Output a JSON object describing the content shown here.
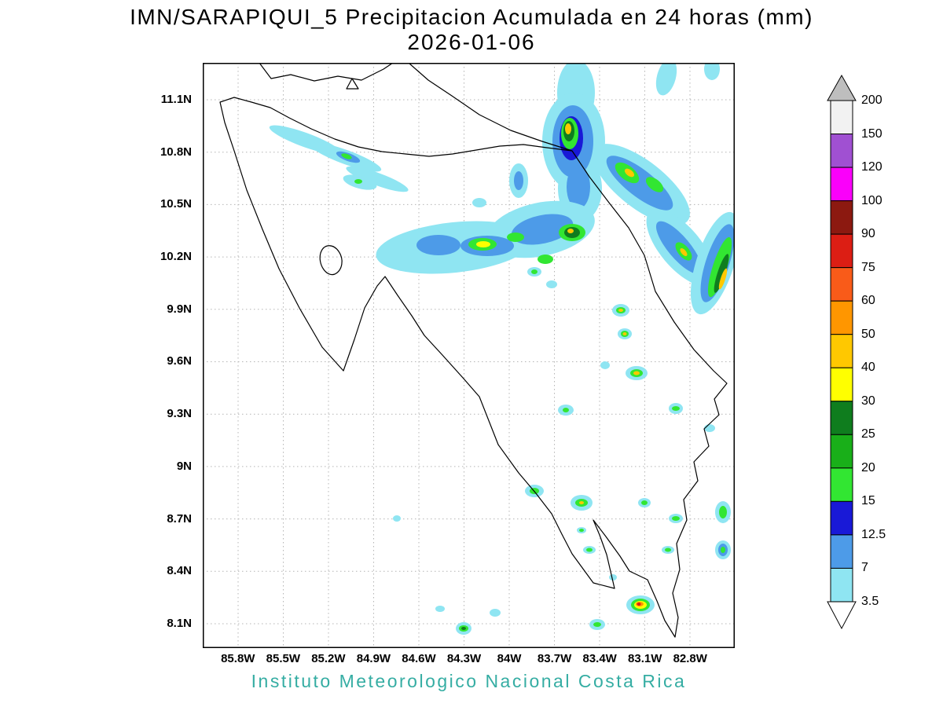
{
  "title": {
    "line1": "IMN/SARAPIQUI_5 Precipitacion Acumulada en 24 horas (mm)",
    "line2": "2026-01-06"
  },
  "footer": {
    "text": "Instituto Meteorologico Nacional Costa Rica",
    "color": "#35ada3"
  },
  "map": {
    "lat_ticks": [
      "11.1N",
      "10.8N",
      "10.5N",
      "10.2N",
      "9.9N",
      "9.6N",
      "9.3N",
      "9N",
      "8.7N",
      "8.4N",
      "8.1N"
    ],
    "lon_ticks": [
      "85.8W",
      "85.5W",
      "85.2W",
      "84.9W",
      "84.6W",
      "84.3W",
      "84W",
      "83.7W",
      "83.4W",
      "83.1W",
      "82.8W"
    ],
    "region": "Costa Rica"
  },
  "colorbar": {
    "units": "mm",
    "labels_top_to_bottom": [
      "200",
      "150",
      "120",
      "100",
      "90",
      "75",
      "60",
      "50",
      "40",
      "30",
      "25",
      "20",
      "15",
      "12.5",
      "7",
      "3.5"
    ],
    "segments_top_to_bottom": [
      {
        "range": ">200",
        "color": "#bebebe",
        "shape": "arrow-up",
        "css_var": "--c-gt200"
      },
      {
        "range": "150-200",
        "color": "#f2f2f2",
        "css_var": "--c-150"
      },
      {
        "range": "120-150",
        "color": "#a050d2",
        "css_var": "--c-120"
      },
      {
        "range": "100-120",
        "color": "#fa00fa",
        "css_var": "--c-100"
      },
      {
        "range": "90-100",
        "color": "#8c1910",
        "css_var": "--c-90"
      },
      {
        "range": "75-90",
        "color": "#dc1e14",
        "css_var": "--c-75"
      },
      {
        "range": "60-75",
        "color": "#f95b19",
        "css_var": "--c-60"
      },
      {
        "range": "50-60",
        "color": "#ff9600",
        "css_var": "--c-50"
      },
      {
        "range": "40-50",
        "color": "#ffc800",
        "css_var": "--c-40"
      },
      {
        "range": "30-40",
        "color": "#ffff00",
        "css_var": "--c-30"
      },
      {
        "range": "25-30",
        "color": "#0f7d1e",
        "css_var": "--c-25"
      },
      {
        "range": "20-25",
        "color": "#19af19",
        "css_var": "--c-20"
      },
      {
        "range": "15-20",
        "color": "#32e632",
        "css_var": "--c-15"
      },
      {
        "range": "12.5-15",
        "color": "#1919d7",
        "css_var": "--c-125"
      },
      {
        "range": "7-12.5",
        "color": "#4d9be8",
        "css_var": "--c-7"
      },
      {
        "range": "3.5-7",
        "color": "#8fe5f2",
        "css_var": "--c-35"
      },
      {
        "range": "<3.5",
        "color": "#ffffff",
        "shape": "arrow-down",
        "css_var": "--c-0"
      }
    ]
  },
  "chart_data": {
    "type": "heatmap",
    "title": "IMN/SARAPIQUI_5 Precipitacion Acumulada en 24 horas (mm)",
    "subtitle": "2026-01-06",
    "units": "mm",
    "region": "Costa Rica",
    "x_ticks": [
      "85.8W",
      "85.5W",
      "85.2W",
      "84.9W",
      "84.6W",
      "84.3W",
      "84W",
      "83.7W",
      "83.4W",
      "83.1W",
      "82.8W"
    ],
    "y_ticks": [
      "11.1N",
      "10.8N",
      "10.5N",
      "10.2N",
      "9.9N",
      "9.6N",
      "9.3N",
      "9N",
      "8.7N",
      "8.4N",
      "8.1N"
    ],
    "lon_range_deg_w": [
      85.8,
      82.8
    ],
    "lat_range_deg_n": [
      8.1,
      11.1
    ],
    "contour_levels_mm": [
      3.5,
      7,
      12.5,
      15,
      20,
      25,
      30,
      40,
      50,
      60,
      75,
      90,
      100,
      120,
      150,
      200
    ],
    "legend_position": "right",
    "grid": true,
    "observed_maxima": [
      {
        "lat": "10.9N",
        "lon": "83.7W",
        "peak_band_mm": "40-50"
      },
      {
        "lat": "10.35N",
        "lon": "83.4W",
        "peak_band_mm": "30-40"
      },
      {
        "lat": "10.35N",
        "lon": "84.0W",
        "peak_band_mm": "30-40"
      },
      {
        "lat": "9.9N",
        "lon": "82.9W",
        "peak_band_mm": "40-50"
      },
      {
        "lat": "9.8N",
        "lon": "83.0W",
        "peak_band_mm": "30-40"
      },
      {
        "lat": "8.2N",
        "lon": "83.1W",
        "peak_band_mm": "60-75"
      }
    ],
    "footer_credit": "Instituto Meteorologico Nacional Costa Rica"
  }
}
